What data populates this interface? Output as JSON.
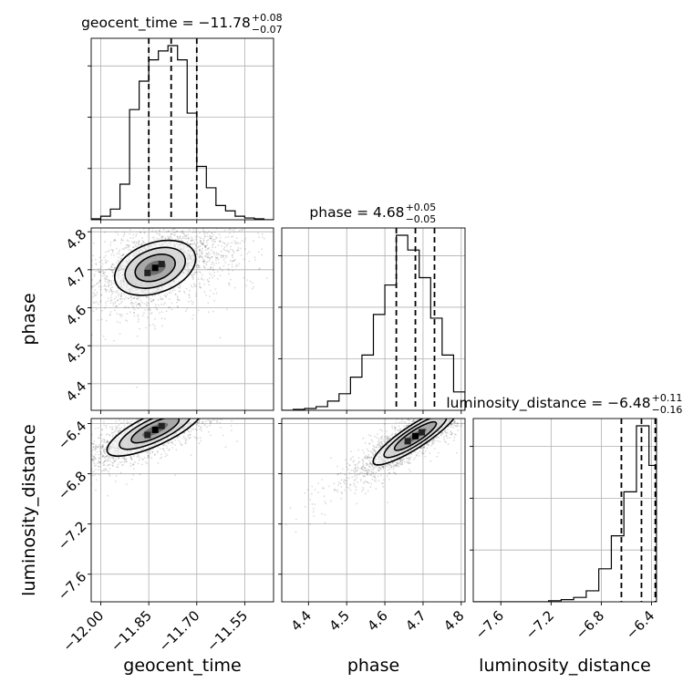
{
  "chart_data": {
    "type": "corner",
    "parameters": [
      {
        "name": "geocent_time",
        "axis_label": "geocent_time",
        "title": {
          "prefix": "geocent_time = ",
          "median": "−11.78",
          "plus": "+0.08",
          "minus": "−0.07"
        },
        "range": [
          -12.03,
          -11.46
        ],
        "ticks": [
          -12.0,
          -11.85,
          -11.7,
          -11.55
        ],
        "tick_labels": [
          "−12.00",
          "−11.85",
          "−11.70",
          "−11.55"
        ],
        "quantiles": [
          -11.85,
          -11.78,
          -11.7
        ]
      },
      {
        "name": "phase",
        "axis_label": "phase",
        "title": {
          "prefix": "phase = ",
          "median": "4.68",
          "plus": "+0.05",
          "minus": "−0.05"
        },
        "range": [
          4.33,
          4.81
        ],
        "ticks": [
          4.4,
          4.5,
          4.6,
          4.7,
          4.8
        ],
        "tick_labels": [
          "4.4",
          "4.5",
          "4.6",
          "4.7",
          "4.8"
        ],
        "quantiles": [
          4.63,
          4.68,
          4.73
        ]
      },
      {
        "name": "luminosity_distance",
        "axis_label": "luminosity_distance",
        "title": {
          "prefix": "luminosity_distance = ",
          "median": "−6.48",
          "plus": "+0.11",
          "minus": "−0.16"
        },
        "range": [
          -7.82,
          -6.36
        ],
        "ticks": [
          -7.6,
          -7.2,
          -6.8,
          -6.4
        ],
        "tick_labels": [
          "−7.6",
          "−7.2",
          "−6.8",
          "−6.4"
        ],
        "quantiles": [
          -6.64,
          -6.48,
          -6.37
        ]
      }
    ],
    "histograms": [
      {
        "param": "geocent_time",
        "bin_edges": [
          -12.03,
          -12.0,
          -11.97,
          -11.94,
          -11.91,
          -11.88,
          -11.85,
          -11.82,
          -11.79,
          -11.76,
          -11.73,
          -11.7,
          -11.67,
          -11.64,
          -11.61,
          -11.58,
          -11.55,
          -11.52,
          -11.49,
          -11.46
        ],
        "counts": [
          0.5,
          2,
          6,
          20,
          62,
          78,
          90,
          95,
          98,
          90,
          60,
          30,
          18,
          8,
          5,
          2,
          1,
          0.5,
          0
        ]
      },
      {
        "param": "phase",
        "bin_edges": [
          4.33,
          4.36,
          4.39,
          4.42,
          4.45,
          4.48,
          4.51,
          4.54,
          4.57,
          4.6,
          4.63,
          4.66,
          4.69,
          4.72,
          4.75,
          4.78,
          4.81
        ],
        "counts": [
          0,
          0.5,
          1,
          2,
          5,
          9,
          18,
          30,
          52,
          68,
          95,
          87,
          72,
          50,
          30,
          10
        ]
      },
      {
        "param": "luminosity_distance",
        "bin_edges": [
          -7.82,
          -7.72,
          -7.62,
          -7.52,
          -7.42,
          -7.32,
          -7.22,
          -7.12,
          -7.02,
          -6.92,
          -6.82,
          -6.72,
          -6.62,
          -6.52,
          -6.42,
          -6.36
        ],
        "counts": [
          0,
          0,
          0,
          0,
          0,
          0,
          0.5,
          1,
          2,
          5,
          15,
          30,
          50,
          80,
          62
        ]
      }
    ],
    "joint_2d": [
      {
        "x": "geocent_time",
        "y": "phase",
        "peak": [
          -11.83,
          4.705
        ],
        "corr": 0.3
      },
      {
        "x": "geocent_time",
        "y": "luminosity_distance",
        "peak": [
          -11.83,
          -6.45
        ],
        "corr": 0.7
      },
      {
        "x": "phase",
        "y": "luminosity_distance",
        "peak": [
          4.68,
          -6.5
        ],
        "corr": 0.93
      }
    ],
    "grid": true
  }
}
